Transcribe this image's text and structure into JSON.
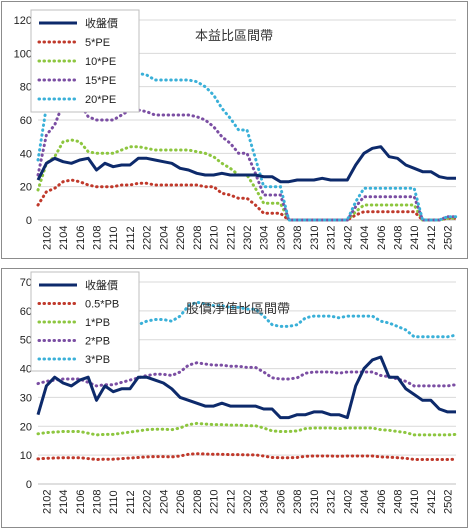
{
  "chart_data": [
    {
      "type": "line",
      "title": "本益比區間帶",
      "x": [
        "2101",
        "2102",
        "2103",
        "2104",
        "2105",
        "2106",
        "2107",
        "2108",
        "2109",
        "2110",
        "2111",
        "2112",
        "2201",
        "2202",
        "2203",
        "2204",
        "2205",
        "2206",
        "2207",
        "2208",
        "2209",
        "2210",
        "2211",
        "2212",
        "2301",
        "2302",
        "2303",
        "2304",
        "2305",
        "2306",
        "2307",
        "2308",
        "2309",
        "2310",
        "2311",
        "2312",
        "2401",
        "2402",
        "2403",
        "2404",
        "2405",
        "2406",
        "2407",
        "2408",
        "2409",
        "2410",
        "2411",
        "2412",
        "2501",
        "2502",
        "2503"
      ],
      "x_tick_labels": [
        "2102",
        "2104",
        "2106",
        "2108",
        "2110",
        "2112",
        "2202",
        "2204",
        "2206",
        "2208",
        "2210",
        "2212",
        "2302",
        "2304",
        "2306",
        "2308",
        "2310",
        "2312",
        "2402",
        "2404",
        "2406",
        "2408",
        "2410",
        "2412",
        "2502"
      ],
      "ylim": [
        0,
        120
      ],
      "yticks": [
        0,
        20,
        40,
        60,
        80,
        100,
        120
      ],
      "grid": true,
      "legend_position": "top-left",
      "series": [
        {
          "name": "收盤價",
          "style": "solid",
          "color": "#0d2a6b",
          "values": [
            24,
            34,
            37,
            35,
            34,
            36,
            37,
            30,
            34,
            32,
            33,
            33,
            37,
            37,
            36,
            35,
            34,
            31,
            30,
            28,
            27,
            27,
            28,
            27,
            27,
            27,
            27,
            26,
            26,
            23,
            23,
            24,
            24,
            24,
            25,
            24,
            24,
            24,
            33,
            40,
            43,
            44,
            38,
            37,
            33,
            31,
            29,
            29,
            26,
            25,
            25
          ]
        },
        {
          "name": "5*PE",
          "style": "dotted",
          "color": "#c0392b",
          "values": [
            9,
            17,
            19,
            23,
            24,
            23,
            21,
            20,
            20,
            20,
            21,
            21,
            22,
            22,
            21,
            21,
            21,
            21,
            21,
            21,
            20,
            20,
            16,
            15,
            13,
            13,
            9,
            4,
            4,
            4,
            0,
            0,
            0,
            0,
            0,
            0,
            0,
            0,
            3,
            5,
            5,
            5,
            5,
            5,
            5,
            5,
            0,
            0,
            0,
            1,
            1
          ]
        },
        {
          "name": "10*PE",
          "style": "dotted",
          "color": "#8dc63f",
          "values": [
            18,
            34,
            38,
            47,
            48,
            47,
            41,
            40,
            40,
            40,
            42,
            44,
            44,
            43,
            42,
            42,
            42,
            42,
            42,
            41,
            40,
            38,
            34,
            31,
            27,
            27,
            19,
            10,
            10,
            10,
            0,
            0,
            0,
            0,
            0,
            0,
            0,
            0,
            5,
            9,
            9,
            9,
            9,
            9,
            9,
            9,
            0,
            0,
            0,
            1,
            1
          ]
        },
        {
          "name": "15*PE",
          "style": "dotted",
          "color": "#7b4ea3",
          "values": [
            27,
            51,
            57,
            70,
            72,
            70,
            62,
            60,
            60,
            60,
            63,
            66,
            66,
            65,
            63,
            63,
            63,
            63,
            63,
            62,
            60,
            56,
            50,
            46,
            40,
            40,
            28,
            15,
            15,
            15,
            0,
            0,
            0,
            0,
            0,
            0,
            0,
            0,
            8,
            14,
            14,
            14,
            14,
            14,
            14,
            14,
            0,
            0,
            0,
            2,
            2
          ]
        },
        {
          "name": "20*PE",
          "style": "dotted",
          "color": "#3ab0d8",
          "values": [
            36,
            68,
            76,
            94,
            96,
            94,
            82,
            80,
            80,
            80,
            84,
            88,
            88,
            87,
            84,
            84,
            84,
            84,
            84,
            83,
            80,
            75,
            67,
            61,
            54,
            54,
            37,
            20,
            20,
            20,
            0,
            0,
            0,
            0,
            0,
            0,
            0,
            0,
            11,
            19,
            19,
            19,
            19,
            19,
            19,
            19,
            0,
            0,
            0,
            2,
            2
          ]
        }
      ]
    },
    {
      "type": "line",
      "title": "股價淨值比區間帶",
      "x": [
        "2101",
        "2102",
        "2103",
        "2104",
        "2105",
        "2106",
        "2107",
        "2108",
        "2109",
        "2110",
        "2111",
        "2112",
        "2201",
        "2202",
        "2203",
        "2204",
        "2205",
        "2206",
        "2207",
        "2208",
        "2209",
        "2210",
        "2211",
        "2212",
        "2301",
        "2302",
        "2303",
        "2304",
        "2305",
        "2306",
        "2307",
        "2308",
        "2309",
        "2310",
        "2311",
        "2312",
        "2401",
        "2402",
        "2403",
        "2404",
        "2405",
        "2406",
        "2407",
        "2408",
        "2409",
        "2410",
        "2411",
        "2412",
        "2501",
        "2502",
        "2503"
      ],
      "x_tick_labels": [
        "2102",
        "2104",
        "2106",
        "2108",
        "2110",
        "2112",
        "2202",
        "2204",
        "2206",
        "2208",
        "2210",
        "2212",
        "2302",
        "2304",
        "2306",
        "2308",
        "2310",
        "2312",
        "2402",
        "2404",
        "2406",
        "2408",
        "2410",
        "2412",
        "2502"
      ],
      "ylim": [
        0,
        70
      ],
      "yticks": [
        0,
        10,
        20,
        30,
        40,
        50,
        60,
        70
      ],
      "grid": true,
      "legend_position": "top-left",
      "series": [
        {
          "name": "收盤價",
          "style": "solid",
          "color": "#0d2a6b",
          "values": [
            24,
            34,
            37,
            35,
            34,
            36,
            37,
            29,
            34,
            32,
            33,
            33,
            37,
            37,
            36,
            35,
            33,
            30,
            29,
            28,
            27,
            27,
            28,
            27,
            27,
            27,
            27,
            26,
            26,
            23,
            23,
            24,
            24,
            25,
            25,
            24,
            24,
            23,
            34,
            40,
            43,
            44,
            37,
            37,
            33,
            31,
            29,
            29,
            26,
            25,
            25
          ]
        },
        {
          "name": "0.5*PB",
          "style": "dotted",
          "color": "#c0392b",
          "values": [
            8.7,
            8.9,
            9,
            9.1,
            9.1,
            9.1,
            8.8,
            8.5,
            8.6,
            8.6,
            8.8,
            9,
            9.2,
            9.4,
            9.5,
            9.5,
            9.4,
            9.7,
            10.3,
            10.5,
            10.4,
            10.3,
            10.3,
            10.2,
            10.2,
            10.1,
            10.1,
            9.7,
            9.2,
            9.1,
            9.1,
            9.2,
            9.6,
            9.7,
            9.7,
            9.7,
            9.6,
            9.7,
            9.7,
            9.7,
            9.7,
            9.4,
            9.3,
            9.1,
            8.9,
            8.5,
            8.5,
            8.5,
            8.5,
            8.5,
            8.6
          ]
        },
        {
          "name": "1*PB",
          "style": "dotted",
          "color": "#8dc63f",
          "values": [
            17.4,
            17.8,
            18,
            18.2,
            18.2,
            18.2,
            17.6,
            17,
            17.2,
            17.2,
            17.6,
            18,
            18.4,
            18.8,
            19,
            19,
            18.8,
            19.4,
            20.6,
            21,
            20.8,
            20.6,
            20.6,
            20.4,
            20.4,
            20.2,
            20.2,
            19.4,
            18.4,
            18.2,
            18.2,
            18.4,
            19.2,
            19.4,
            19.4,
            19.4,
            19.2,
            19.4,
            19.4,
            19.4,
            19.4,
            18.8,
            18.6,
            18.2,
            17.8,
            17,
            17,
            17,
            17,
            17,
            17.2
          ]
        },
        {
          "name": "2*PB",
          "style": "dotted",
          "color": "#7b4ea3",
          "values": [
            34.8,
            35.6,
            36,
            36.4,
            36.4,
            36.4,
            35.2,
            34,
            34.4,
            34.4,
            35.2,
            36,
            36.8,
            37.6,
            38,
            38,
            37.6,
            38.8,
            41.2,
            42,
            41.6,
            41.2,
            41.2,
            40.8,
            40.8,
            40.4,
            40.4,
            38.8,
            36.8,
            36.4,
            36.4,
            36.8,
            38.4,
            38.8,
            38.8,
            38.8,
            38.4,
            38.8,
            38.8,
            38.8,
            38.8,
            37.6,
            37.2,
            36.4,
            35.6,
            34,
            34,
            34,
            34,
            34,
            34.4
          ]
        },
        {
          "name": "3*PB",
          "style": "dotted",
          "color": "#3ab0d8",
          "values": [
            52,
            53.4,
            54,
            54.6,
            54.6,
            54.6,
            52.8,
            51,
            51.6,
            51.6,
            52.8,
            54,
            55.2,
            56.4,
            57,
            57,
            56.4,
            58.2,
            61.8,
            63,
            62.4,
            61.8,
            61.8,
            61.2,
            61.2,
            60.6,
            60.6,
            58.2,
            55.2,
            54.6,
            54.6,
            55.2,
            57.6,
            58.2,
            58.2,
            58.2,
            57.6,
            58.2,
            58.2,
            58.2,
            58.2,
            56.4,
            55.8,
            54.6,
            53.4,
            51,
            51,
            51,
            51,
            51,
            51.6
          ]
        }
      ]
    }
  ]
}
